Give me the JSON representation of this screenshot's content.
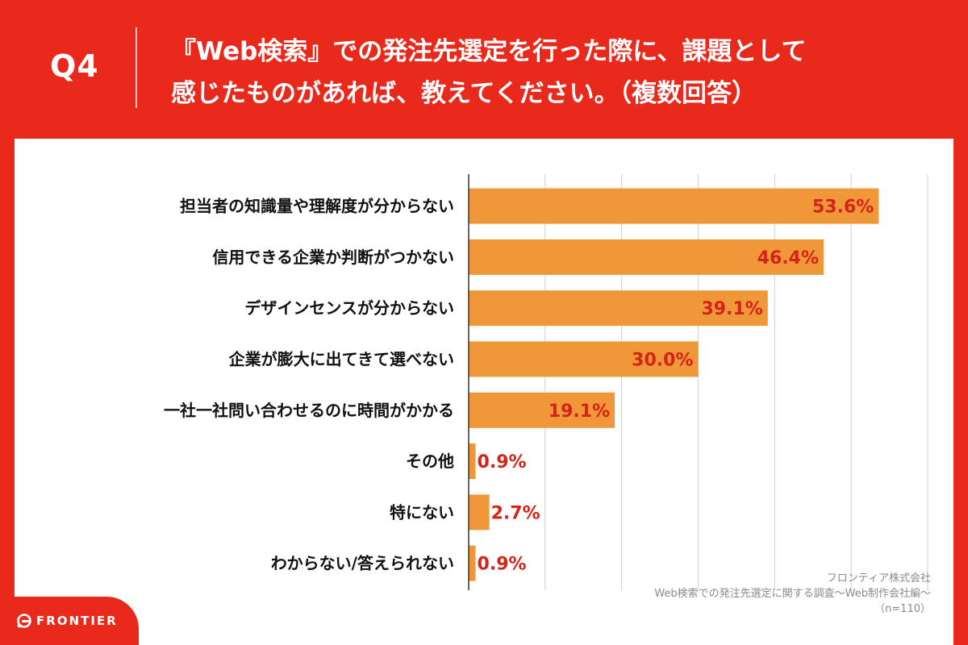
{
  "header": {
    "q_label": "Q4",
    "question_line1": "『Web検索』での発注先選定を行った際に、課題として",
    "question_line2": "感じたものがあれば、教えてください。（複数回答）"
  },
  "chart_data": {
    "type": "bar",
    "orientation": "horizontal",
    "categories": [
      "担当者の知識量や理解度が分からない",
      "信用できる企業か判断がつかない",
      "デザインセンスが分からない",
      "企業が膨大に出てきて選べない",
      "一社一社問い合わせるのに時間がかかる",
      "その他",
      "特にない",
      "わからない/答えられない"
    ],
    "values": [
      53.6,
      46.4,
      39.1,
      30.0,
      19.1,
      0.9,
      2.7,
      0.9
    ],
    "value_labels": [
      "53.6%",
      "46.4%",
      "39.1%",
      "30.0%",
      "19.1%",
      "0.9%",
      "2.7%",
      "0.9%"
    ],
    "xlim": [
      0,
      60
    ],
    "grid": true,
    "bar_color": "#f0973a",
    "label_color": "#d42318"
  },
  "source": {
    "line1": "フロンティア株式会社",
    "line2": "Web検索での発注先選定に関する調査〜Web制作会社編〜",
    "line3": "（n=110）"
  },
  "logo": {
    "text": "FRONTIER"
  },
  "colors": {
    "brand_red": "#e8291c",
    "panel": "#ffffff",
    "gridline": "#cfcfcf"
  }
}
